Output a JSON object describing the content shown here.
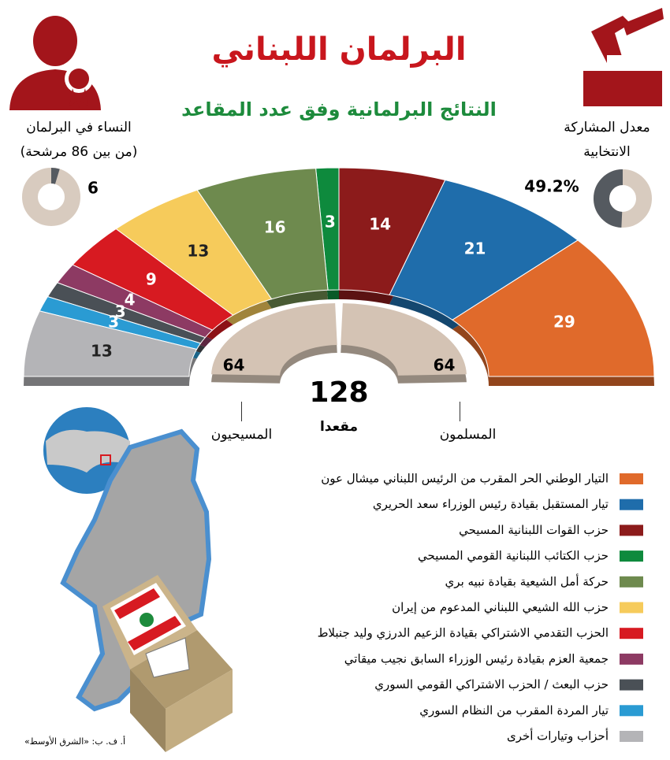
{
  "title": "البرلمان اللبناني",
  "subtitle": "النتائج البرلمانية وفق عدد المقاعد",
  "women": {
    "label": "النساء في البرلمان",
    "note": "(من بين 86 مرشحة)",
    "value": 6
  },
  "turnout": {
    "label_lines": [
      "معدل المشاركة",
      "الانتخابية"
    ],
    "value": 49.2,
    "value_label": "49.2%"
  },
  "chart_data": {
    "type": "parliament",
    "categories": [
      "التيار الوطني الحر المقرب من الرئيس اللبناني ميشال عون",
      "تيار المستقبل بقيادة رئيس الوزراء سعد الحريري",
      "حزب القوات اللبنانية المسيحي",
      "حزب الكتائب اللبنانية القومي المسيحي",
      "حركة أمل الشيعية بقيادة نبيه بري",
      "حزب الله الشيعي اللبناني المدعوم من إيران",
      "الحزب التقدمي الاشتراكي بقيادة الزعيم الدرزي وليد جنبلاط",
      "جمعية العزم بقيادة رئيس الوزراء السابق نجيب ميقاتي",
      "حزب البعث / الحزب الاشتراكي القومي السوري",
      "تيار المردة المقرب من النظام السوري",
      "أحزاب وتيارات أخرى"
    ],
    "values": [
      29,
      21,
      14,
      3,
      16,
      13,
      9,
      4,
      3,
      3,
      13
    ],
    "colors": [
      "#e06a2b",
      "#1f6dab",
      "#8c1b1b",
      "#0e8a3d",
      "#6e8a4e",
      "#f6cb5b",
      "#d71a21",
      "#8d3a63",
      "#4a5056",
      "#2a9bd3",
      "#b4b4b7"
    ],
    "total": 128,
    "total_label": "مقعدا",
    "blocs": [
      {
        "name": "المسلمون",
        "value": 64
      },
      {
        "name": "المسيحيون",
        "value": 64
      }
    ],
    "bloc_color": "#d4c3b4"
  },
  "credit": "أ. ف. ب: «الشرق الأوسط»"
}
